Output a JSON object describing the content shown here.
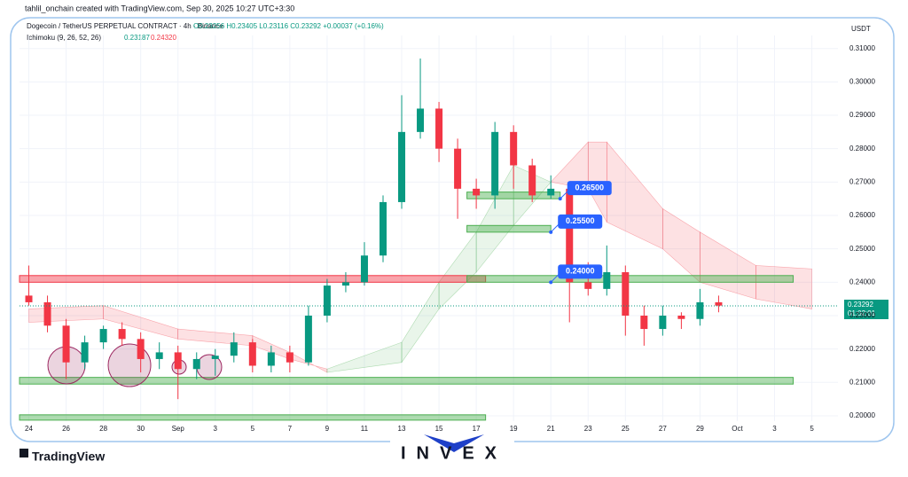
{
  "header": "tahlil_onchain created with TradingView.com, Sep 30, 2025 10:27 UTC+3:30",
  "chart_data": {
    "type": "candlestick",
    "title": "Dogecoin / TetherUS PERPETUAL CONTRACT · 4h · Binance",
    "ohlc_text": "O0.23256 H0.23405 L0.23116 C0.23292 +0.00037 (+0.16%)",
    "indicator": "Ichimoku (9, 26, 52, 26)",
    "indicator_values": [
      "0.23187",
      "0.24320"
    ],
    "unit": "USDT",
    "up_color": "#089981",
    "down_color": "#f23645",
    "x": [
      0,
      1,
      2,
      3,
      4,
      5,
      6,
      7,
      8,
      9,
      10,
      11,
      12,
      13,
      14,
      15,
      16,
      17,
      18,
      19,
      20,
      21,
      22,
      23,
      24,
      25,
      26,
      27,
      28,
      29,
      30,
      31,
      32,
      33,
      34,
      35,
      36,
      37
    ],
    "open": [
      0.236,
      0.234,
      0.227,
      0.216,
      0.222,
      0.226,
      0.223,
      0.217,
      0.219,
      0.214,
      0.217,
      0.218,
      0.222,
      0.215,
      0.219,
      0.216,
      0.23,
      0.239,
      0.24,
      0.248,
      0.264,
      0.285,
      0.292,
      0.28,
      0.268,
      0.266,
      0.285,
      0.275,
      0.266,
      0.268,
      0.24,
      0.238,
      0.243,
      0.23,
      0.226,
      0.23,
      0.229,
      0.234
    ],
    "high": [
      0.245,
      0.236,
      0.229,
      0.224,
      0.227,
      0.228,
      0.225,
      0.222,
      0.221,
      0.219,
      0.22,
      0.225,
      0.223,
      0.221,
      0.221,
      0.233,
      0.241,
      0.243,
      0.252,
      0.266,
      0.296,
      0.307,
      0.294,
      0.283,
      0.271,
      0.288,
      0.287,
      0.277,
      0.272,
      0.269,
      0.246,
      0.251,
      0.245,
      0.233,
      0.233,
      0.231,
      0.238,
      0.236
    ],
    "low": [
      0.233,
      0.225,
      0.211,
      0.214,
      0.22,
      0.221,
      0.213,
      0.214,
      0.205,
      0.211,
      0.212,
      0.216,
      0.213,
      0.213,
      0.213,
      0.215,
      0.228,
      0.237,
      0.239,
      0.246,
      0.262,
      0.283,
      0.276,
      0.259,
      0.262,
      0.262,
      0.268,
      0.264,
      0.265,
      0.228,
      0.236,
      0.236,
      0.224,
      0.221,
      0.224,
      0.226,
      0.227,
      0.231
    ],
    "close": [
      0.234,
      0.227,
      0.216,
      0.222,
      0.226,
      0.223,
      0.217,
      0.219,
      0.214,
      0.217,
      0.218,
      0.222,
      0.215,
      0.219,
      0.216,
      0.23,
      0.239,
      0.24,
      0.248,
      0.264,
      0.285,
      0.292,
      0.28,
      0.268,
      0.266,
      0.285,
      0.275,
      0.266,
      0.268,
      0.24,
      0.238,
      0.243,
      0.23,
      0.226,
      0.23,
      0.229,
      0.234,
      0.233
    ],
    "cloud": {
      "x": [
        0,
        4,
        8,
        12,
        14,
        16,
        20,
        22,
        24,
        26,
        28,
        30,
        31,
        34,
        36,
        39,
        42
      ],
      "span_a": [
        0.228,
        0.229,
        0.223,
        0.221,
        0.217,
        0.214,
        0.222,
        0.24,
        0.255,
        0.275,
        0.27,
        0.268,
        0.258,
        0.25,
        0.24,
        0.235,
        0.232
      ],
      "span_b": [
        0.232,
        0.233,
        0.226,
        0.224,
        0.219,
        0.213,
        0.216,
        0.232,
        0.243,
        0.257,
        0.27,
        0.282,
        0.282,
        0.262,
        0.255,
        0.245,
        0.244
      ]
    },
    "zones": [
      {
        "lo": 0.24,
        "hi": 0.242,
        "x0": -0.5,
        "x1": 24.5,
        "color": "#f23645"
      },
      {
        "lo": 0.24,
        "hi": 0.242,
        "x0": 23.5,
        "x1": 41,
        "color": "#4caf50"
      },
      {
        "lo": 0.255,
        "hi": 0.257,
        "x0": 23.5,
        "x1": 28,
        "color": "#4caf50"
      },
      {
        "lo": 0.265,
        "hi": 0.267,
        "x0": 23.5,
        "x1": 28.5,
        "color": "#4caf50"
      },
      {
        "lo": 0.2095,
        "hi": 0.2115,
        "x0": -0.5,
        "x1": 41,
        "color": "#4caf50"
      },
      {
        "lo": 0.1987,
        "hi": 0.2003,
        "x0": -0.5,
        "x1": 24.5,
        "color": "#4caf50"
      }
    ],
    "annotations": [
      {
        "x": 28.5,
        "value": 0.265,
        "label": "0.26500"
      },
      {
        "x": 28,
        "value": 0.255,
        "label": "0.25500"
      },
      {
        "x": 28,
        "value": 0.24,
        "label": "0.24000"
      }
    ],
    "last_price": {
      "value": 0.23292,
      "label": "0.23292"
    },
    "countdown": "01:02:01",
    "xlim": [
      -0.5,
      43.4
    ],
    "ylim": [
      0.1984,
      0.3139
    ],
    "xticks": [
      {
        "value": 0,
        "label": "24"
      },
      {
        "value": 2,
        "label": "26"
      },
      {
        "value": 4,
        "label": "28"
      },
      {
        "value": 6,
        "label": "30"
      },
      {
        "value": 8,
        "label": "Sep"
      },
      {
        "value": 10,
        "label": "3"
      },
      {
        "value": 12,
        "label": "5"
      },
      {
        "value": 14,
        "label": "7"
      },
      {
        "value": 16,
        "label": "9"
      },
      {
        "value": 18,
        "label": "11"
      },
      {
        "value": 20,
        "label": "13"
      },
      {
        "value": 22,
        "label": "15"
      },
      {
        "value": 24,
        "label": "17"
      },
      {
        "value": 26,
        "label": "19"
      },
      {
        "value": 28,
        "label": "21"
      },
      {
        "value": 30,
        "label": "23"
      },
      {
        "value": 32,
        "label": "25"
      },
      {
        "value": 34,
        "label": "27"
      },
      {
        "value": 36,
        "label": "29"
      },
      {
        "value": 38,
        "label": "Oct"
      },
      {
        "value": 40,
        "label": "3"
      },
      {
        "value": 42,
        "label": "5"
      }
    ],
    "yticks": [
      {
        "value": 0.2,
        "label": "0.20000"
      },
      {
        "value": 0.21,
        "label": "0.21000"
      },
      {
        "value": 0.22,
        "label": "0.22000"
      },
      {
        "value": 0.23,
        "label": "0.23000"
      },
      {
        "value": 0.24,
        "label": "0.24000"
      },
      {
        "value": 0.25,
        "label": "0.25000"
      },
      {
        "value": 0.26,
        "label": "0.26000"
      },
      {
        "value": 0.27,
        "label": "0.27000"
      },
      {
        "value": 0.28,
        "label": "0.28000"
      },
      {
        "value": 0.29,
        "label": "0.29000"
      },
      {
        "value": 0.3,
        "label": "0.30000"
      },
      {
        "value": 0.31,
        "label": "0.31000"
      }
    ]
  },
  "footer": {
    "brand": "TradingView",
    "logo": "INVEX"
  }
}
